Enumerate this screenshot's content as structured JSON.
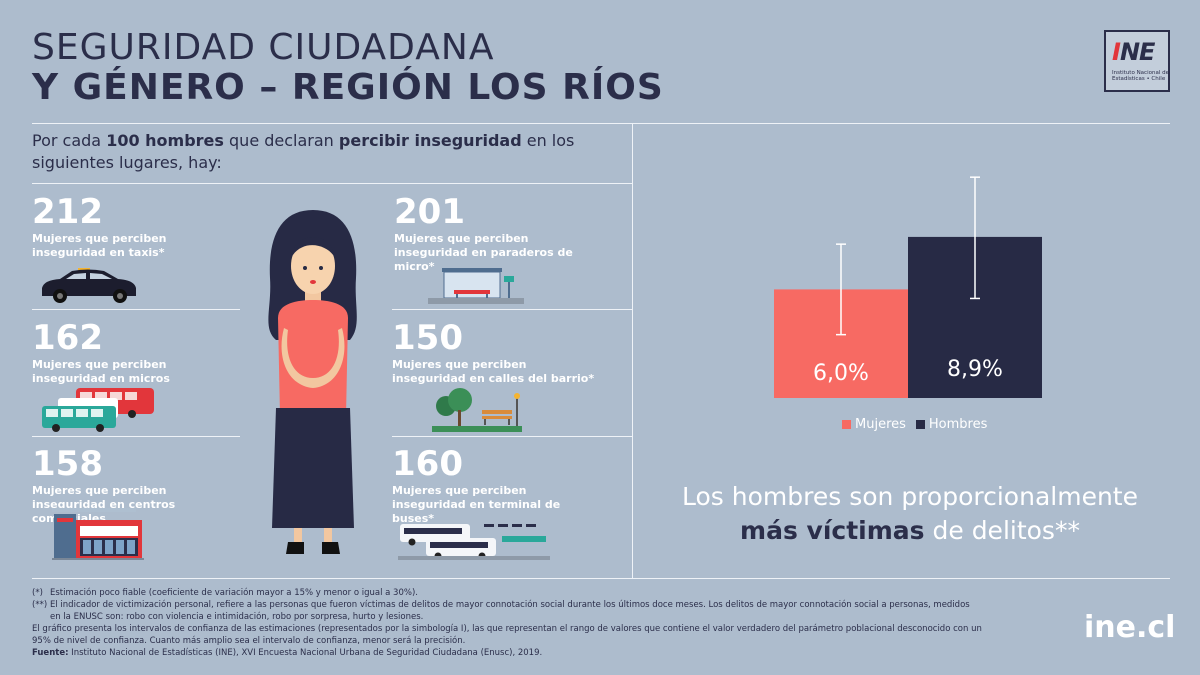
{
  "title": {
    "line1": "SEGURIDAD CIUDADANA",
    "line2": "Y GÉNERO – REGIÓN LOS RÍOS"
  },
  "logo": {
    "text_i": "I",
    "text_rest": "NE",
    "subtitle": "Instituto Nacional de Estadísticas • Chile"
  },
  "intro": {
    "part1": "Por cada ",
    "bold1": "100 hombres",
    "part2": " que declaran ",
    "bold2": "percibir inseguridad",
    "part3": " en los siguientes lugares, hay:"
  },
  "stats": [
    {
      "value": "212",
      "desc": "Mujeres que perciben inseguridad en taxis*"
    },
    {
      "value": "162",
      "desc": "Mujeres que perciben inseguridad en micros"
    },
    {
      "value": "158",
      "desc": "Mujeres que perciben inseguridad en centros comerciales"
    },
    {
      "value": "201",
      "desc": "Mujeres que perciben inseguridad en paraderos de micro*"
    },
    {
      "value": "150",
      "desc": "Mujeres que perciben inseguridad en calles del barrio*"
    },
    {
      "value": "160",
      "desc": "Mujeres que perciben inseguridad en terminal de buses*"
    }
  ],
  "icons": [
    "taxi-icon",
    "bus-icon",
    "mall-icon",
    "bus-stop-icon",
    "park-icon",
    "bus-terminal-icon",
    "woman-figure"
  ],
  "chart_data": {
    "type": "bar",
    "categories": [
      "Mujeres",
      "Hombres"
    ],
    "values": [
      6.0,
      8.9
    ],
    "labels": [
      "6,0%",
      "8,9%"
    ],
    "ci_low": [
      3.5,
      5.5
    ],
    "ci_high": [
      8.5,
      12.2
    ],
    "colors": [
      "#f76a63",
      "#272a45"
    ],
    "legend": [
      "Mujeres",
      "Hombres"
    ],
    "legend_position": "bottom"
  },
  "tagline": {
    "part1": "Los hombres son proporcionalmente ",
    "bold": "más víctimas",
    "part2": " de delitos**"
  },
  "footnotes": {
    "f1_mark": "(*)",
    "f1": "Estimación poco fiable (coeficiente de variación mayor a 15% y menor o igual a 30%).",
    "f2_mark": "(**)",
    "f2": "El indicador de victimización personal, refiere a las personas que fueron víctimas de delitos de mayor connotación social durante los últimos doce meses. Los delitos de mayor connotación social a personas, medidos en la ENUSC son: robo con violencia e intimidación, robo por sorpresa, hurto y lesiones.",
    "f3": "El gráfico presenta los intervalos de confianza de las estimaciones (representados por la simbología I), las que representan el rango de valores que contiene el valor verdadero del parámetro poblacional desconocido con un 95% de nivel de confianza. Cuanto más amplio sea el intervalo de confianza, menor será la precisión.",
    "source_label": "Fuente:",
    "source": " Instituto Nacional de Estadísticas (INE), XVI Encuesta Nacional Urbana de Seguridad Ciudadana (Enusc), 2019."
  },
  "website": "ine.cl"
}
